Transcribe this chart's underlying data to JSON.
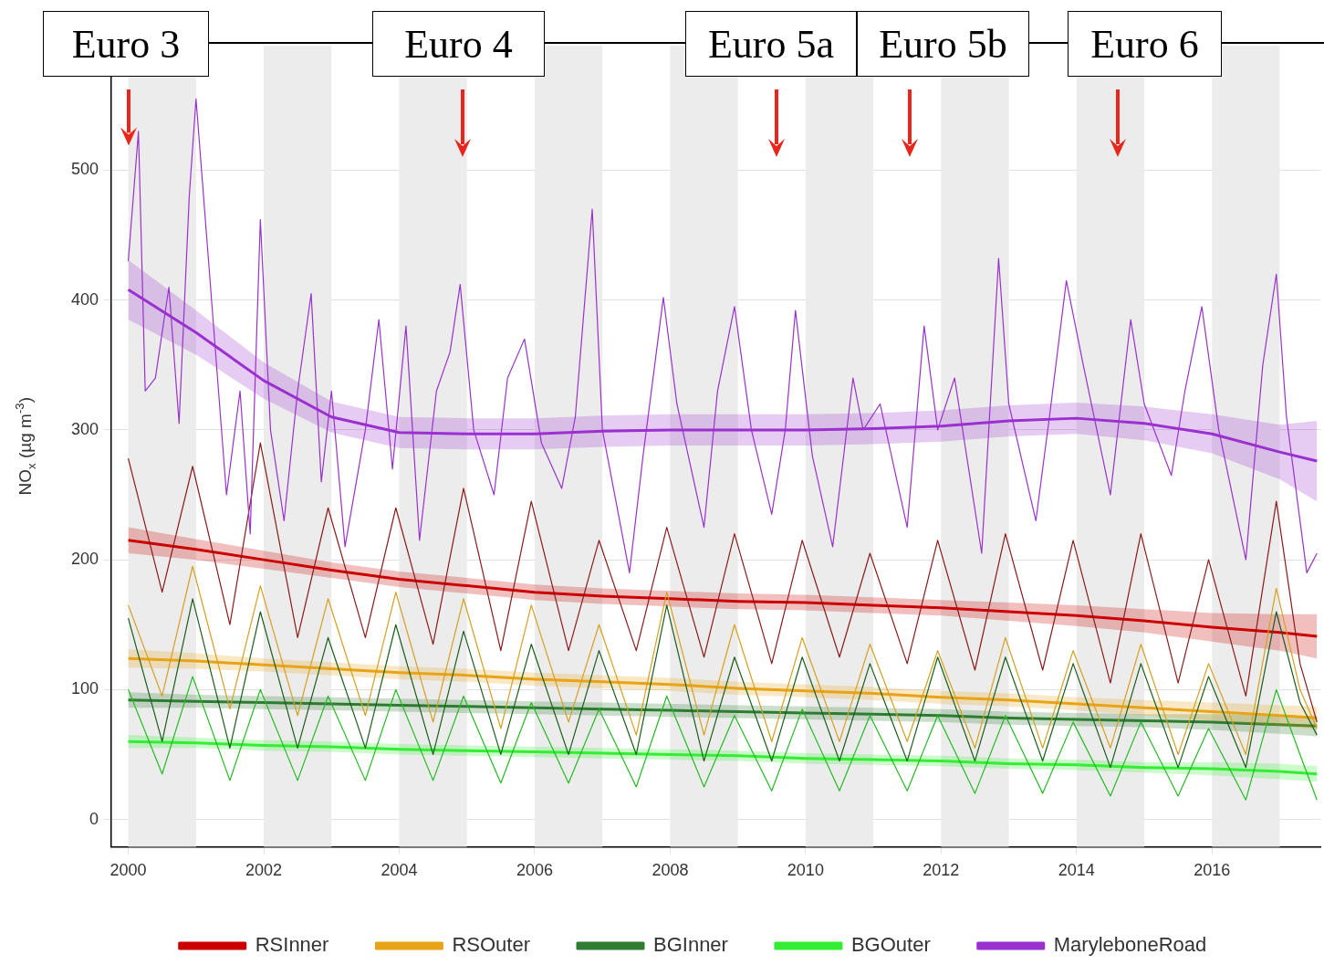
{
  "chart_data": {
    "type": "line",
    "ylabel": "NO$_{x}$ (µg m$^{-3}$)",
    "xlim": [
      1999.75,
      2017.6
    ],
    "ylim": [
      -21,
      596
    ],
    "xticks": [
      2000,
      2002,
      2004,
      2006,
      2008,
      2010,
      2012,
      2014,
      2016
    ],
    "yticks": [
      0,
      100,
      200,
      300,
      400,
      500
    ],
    "grid": "y",
    "legend": "bottom",
    "bands": [
      {
        "axis": "x",
        "from": 2000,
        "to": 2001,
        "color": "#ececec"
      },
      {
        "axis": "x",
        "from": 2002,
        "to": 2003,
        "color": "#ececec"
      },
      {
        "axis": "x",
        "from": 2004,
        "to": 2005,
        "color": "#ececec"
      },
      {
        "axis": "x",
        "from": 2006,
        "to": 2007,
        "color": "#ececec"
      },
      {
        "axis": "x",
        "from": 2008,
        "to": 2009,
        "color": "#ececec"
      },
      {
        "axis": "x",
        "from": 2010,
        "to": 2011,
        "color": "#ececec"
      },
      {
        "axis": "x",
        "from": 2012,
        "to": 2013,
        "color": "#ececec"
      },
      {
        "axis": "x",
        "from": 2014,
        "to": 2015,
        "color": "#ececec"
      },
      {
        "axis": "x",
        "from": 2016,
        "to": 2017,
        "color": "#ececec"
      }
    ],
    "annotations": [
      {
        "text": "Euro 3",
        "x": 2000,
        "y": 519
      },
      "Euro 4",
      "Euro 5a",
      "Euro 5b",
      "Euro 6"
    ],
    "series": [
      {
        "color": "#9932cc",
        "x": [
          2000,
          2000.15,
          2000.25,
          2000.4,
          2000.6,
          2000.75,
          2000.9,
          2001.0,
          2001.2,
          2001.45,
          2001.65,
          2001.8,
          2001.95,
          2002.1,
          2002.3,
          2002.5,
          2002.7,
          2002.85,
          2003.0,
          2003.2,
          2003.5,
          2003.7,
          2003.9,
          2004.1,
          2004.3,
          2004.55,
          2004.75,
          2004.9,
          2005.1,
          2005.4,
          2005.6,
          2005.85,
          2006.1,
          2006.4,
          2006.6,
          2006.85,
          2007.0,
          2007.4,
          2007.6,
          2007.9,
          2008.1,
          2008.5,
          2008.7,
          2008.95,
          2009.2,
          2009.5,
          2009.7,
          2009.85,
          2010.1,
          2010.4,
          2010.7,
          2010.85,
          2011.1,
          2011.5,
          2011.75,
          2011.95,
          2012.2,
          2012.6,
          2012.85,
          2013.0,
          2013.4,
          2013.6,
          2013.85,
          2014.1,
          2014.5,
          2014.8,
          2015.0,
          2015.4,
          2015.6,
          2015.85,
          2016.1,
          2016.5,
          2016.75,
          2016.95,
          2017.1,
          2017.4,
          2017.55
        ],
        "values": [
          430,
          530,
          330,
          340,
          410,
          305,
          480,
          555,
          420,
          250,
          330,
          220,
          462,
          300,
          230,
          330,
          405,
          260,
          330,
          210,
          300,
          385,
          270,
          380,
          215,
          330,
          360,
          412,
          300,
          250,
          340,
          370,
          290,
          255,
          310,
          470,
          300,
          190,
          280,
          402,
          320,
          225,
          330,
          395,
          300,
          235,
          300,
          392,
          280,
          210,
          340,
          300,
          320,
          225,
          380,
          300,
          340,
          205,
          432,
          320,
          230,
          310,
          415,
          350,
          250,
          385,
          320,
          265,
          330,
          395,
          300,
          200,
          350,
          420,
          310,
          190,
          205
        ]
      },
      {
        "color": "#8b1a1a",
        "x": [
          2000,
          2000.5,
          2000.95,
          2001.5,
          2001.95,
          2002.5,
          2002.95,
          2003.5,
          2003.95,
          2004.5,
          2004.95,
          2005.5,
          2005.95,
          2006.5,
          2006.95,
          2007.5,
          2007.95,
          2008.5,
          2008.95,
          2009.5,
          2009.95,
          2010.5,
          2010.95,
          2011.5,
          2011.95,
          2012.5,
          2012.95,
          2013.5,
          2013.95,
          2014.5,
          2014.95,
          2015.5,
          2015.95,
          2016.5,
          2016.95,
          2017.3,
          2017.55
        ],
        "values": [
          278,
          175,
          272,
          150,
          290,
          140,
          240,
          140,
          240,
          135,
          255,
          130,
          245,
          130,
          215,
          130,
          225,
          125,
          220,
          120,
          215,
          125,
          205,
          120,
          215,
          115,
          220,
          115,
          215,
          105,
          220,
          105,
          200,
          95,
          245,
          120,
          75
        ]
      },
      {
        "color": "#d4a020",
        "x": [
          2000,
          2000.5,
          2000.95,
          2001.5,
          2001.95,
          2002.5,
          2002.95,
          2003.5,
          2003.95,
          2004.5,
          2004.95,
          2005.5,
          2005.95,
          2006.5,
          2006.95,
          2007.5,
          2007.95,
          2008.5,
          2008.95,
          2009.5,
          2009.95,
          2010.5,
          2010.95,
          2011.5,
          2011.95,
          2012.5,
          2012.95,
          2013.5,
          2013.95,
          2014.5,
          2014.95,
          2015.5,
          2015.95,
          2016.5,
          2016.95,
          2017.3,
          2017.55
        ],
        "values": [
          165,
          95,
          195,
          85,
          180,
          80,
          170,
          80,
          175,
          75,
          170,
          70,
          165,
          75,
          150,
          65,
          175,
          65,
          150,
          60,
          140,
          60,
          135,
          60,
          130,
          55,
          140,
          55,
          130,
          55,
          135,
          50,
          120,
          50,
          178,
          100,
          70
        ]
      },
      {
        "color": "#1a5e1a",
        "x": [
          2000,
          2000.5,
          2000.95,
          2001.5,
          2001.95,
          2002.5,
          2002.95,
          2003.5,
          2003.95,
          2004.5,
          2004.95,
          2005.5,
          2005.95,
          2006.5,
          2006.95,
          2007.5,
          2007.95,
          2008.5,
          2008.95,
          2009.5,
          2009.95,
          2010.5,
          2010.95,
          2011.5,
          2011.95,
          2012.5,
          2012.95,
          2013.5,
          2013.95,
          2014.5,
          2014.95,
          2015.5,
          2015.95,
          2016.5,
          2016.95,
          2017.3,
          2017.55
        ],
        "values": [
          155,
          60,
          170,
          55,
          160,
          55,
          140,
          55,
          150,
          50,
          145,
          50,
          135,
          50,
          130,
          50,
          165,
          45,
          125,
          45,
          125,
          45,
          120,
          45,
          125,
          45,
          125,
          45,
          120,
          40,
          120,
          40,
          110,
          40,
          160,
          90,
          65
        ]
      },
      {
        "color": "#22bb22",
        "x": [
          2000,
          2000.5,
          2000.95,
          2001.5,
          2001.95,
          2002.5,
          2002.95,
          2003.5,
          2003.95,
          2004.5,
          2004.95,
          2005.5,
          2005.95,
          2006.5,
          2006.95,
          2007.5,
          2007.95,
          2008.5,
          2008.95,
          2009.5,
          2009.95,
          2010.5,
          2010.95,
          2011.5,
          2011.95,
          2012.5,
          2012.95,
          2013.5,
          2013.95,
          2014.5,
          2014.95,
          2015.5,
          2015.95,
          2016.5,
          2016.95,
          2017.3,
          2017.55
        ],
        "values": [
          100,
          35,
          110,
          30,
          100,
          30,
          95,
          30,
          100,
          30,
          95,
          28,
          90,
          28,
          85,
          25,
          95,
          25,
          80,
          22,
          85,
          22,
          80,
          22,
          80,
          20,
          80,
          20,
          75,
          18,
          75,
          18,
          70,
          15,
          100,
          50,
          15
        ]
      },
      {
        "name": "RSInner",
        "color": "#cc0000",
        "x": [
          2000,
          2001,
          2002,
          2003,
          2004,
          2005,
          2006,
          2007,
          2008,
          2009,
          2010,
          2011,
          2012,
          2013,
          2014,
          2015,
          2016,
          2017,
          2017.55
        ],
        "values": [
          215,
          208,
          200,
          192,
          185,
          180,
          175,
          172,
          170,
          168,
          167,
          165,
          163,
          160,
          157,
          153,
          148,
          144,
          141
        ],
        "lower": [
          205,
          200,
          193,
          186,
          179,
          174,
          169,
          166,
          164,
          162,
          161,
          159,
          157,
          153,
          149,
          144,
          137,
          130,
          124
        ],
        "upper": [
          225,
          216,
          207,
          198,
          191,
          186,
          181,
          178,
          176,
          174,
          173,
          171,
          169,
          167,
          165,
          162,
          159,
          158,
          158
        ]
      },
      {
        "name": "RSOuter",
        "color": "#e8a317",
        "x": [
          2000,
          2001,
          2002,
          2003,
          2004,
          2005,
          2006,
          2007,
          2008,
          2009,
          2010,
          2011,
          2012,
          2013,
          2014,
          2015,
          2016,
          2017,
          2017.55
        ],
        "values": [
          124,
          122,
          119,
          116,
          113,
          111,
          108,
          106,
          104,
          101,
          99,
          97,
          94,
          92,
          89,
          86,
          83,
          80,
          78
        ],
        "lower": [
          117,
          116,
          114,
          111,
          108,
          106,
          103,
          101,
          99,
          96,
          94,
          92,
          89,
          87,
          84,
          80,
          76,
          72,
          69
        ],
        "upper": [
          131,
          128,
          124,
          121,
          118,
          116,
          113,
          111,
          109,
          106,
          104,
          102,
          99,
          97,
          94,
          92,
          90,
          88,
          87
        ]
      },
      {
        "name": "BGInner",
        "color": "#2e7d32",
        "x": [
          2000,
          2001,
          2002,
          2003,
          2004,
          2005,
          2006,
          2007,
          2008,
          2009,
          2010,
          2011,
          2012,
          2013,
          2014,
          2015,
          2016,
          2017,
          2017.55
        ],
        "values": [
          92,
          91,
          90,
          89,
          88,
          87,
          86,
          85,
          84,
          83,
          82,
          81,
          80,
          78,
          77,
          76,
          75,
          73,
          72
        ],
        "lower": [
          86,
          86,
          85,
          84,
          83,
          82,
          81,
          80,
          79,
          78,
          77,
          76,
          75,
          73,
          72,
          71,
          69,
          66,
          64
        ],
        "upper": [
          98,
          96,
          95,
          94,
          93,
          92,
          91,
          90,
          89,
          88,
          87,
          86,
          85,
          83,
          82,
          81,
          81,
          80,
          80
        ]
      },
      {
        "name": "BGOuter",
        "color": "#33ee33",
        "x": [
          2000,
          2001,
          2002,
          2003,
          2004,
          2005,
          2006,
          2007,
          2008,
          2009,
          2010,
          2011,
          2012,
          2013,
          2014,
          2015,
          2016,
          2017,
          2017.55
        ],
        "values": [
          60,
          59,
          57,
          56,
          54,
          53,
          52,
          51,
          50,
          49,
          47,
          46,
          45,
          43,
          42,
          40,
          39,
          37,
          35
        ],
        "lower": [
          55,
          55,
          53,
          52,
          50,
          49,
          48,
          47,
          46,
          45,
          43,
          42,
          41,
          39,
          38,
          36,
          34,
          31,
          29
        ],
        "upper": [
          65,
          63,
          61,
          60,
          58,
          57,
          56,
          55,
          54,
          53,
          51,
          50,
          49,
          47,
          46,
          44,
          44,
          43,
          41
        ]
      },
      {
        "name": "MaryleboneRoad",
        "color": "#9b30d0",
        "x": [
          2000,
          2001,
          2002,
          2003,
          2004,
          2005,
          2006,
          2007,
          2008,
          2009,
          2010,
          2011,
          2012,
          2013,
          2014,
          2015,
          2016,
          2017,
          2017.55
        ],
        "values": [
          408,
          375,
          338,
          310,
          298,
          297,
          297,
          299,
          300,
          300,
          300,
          301,
          303,
          307,
          309,
          305,
          297,
          283,
          276
        ],
        "lower": [
          385,
          358,
          324,
          298,
          286,
          285,
          285,
          287,
          288,
          288,
          288,
          289,
          291,
          295,
          297,
          292,
          282,
          262,
          245
        ],
        "upper": [
          431,
          392,
          352,
          322,
          310,
          309,
          309,
          311,
          312,
          312,
          312,
          313,
          315,
          319,
          321,
          318,
          312,
          304,
          307
        ]
      }
    ]
  }
}
